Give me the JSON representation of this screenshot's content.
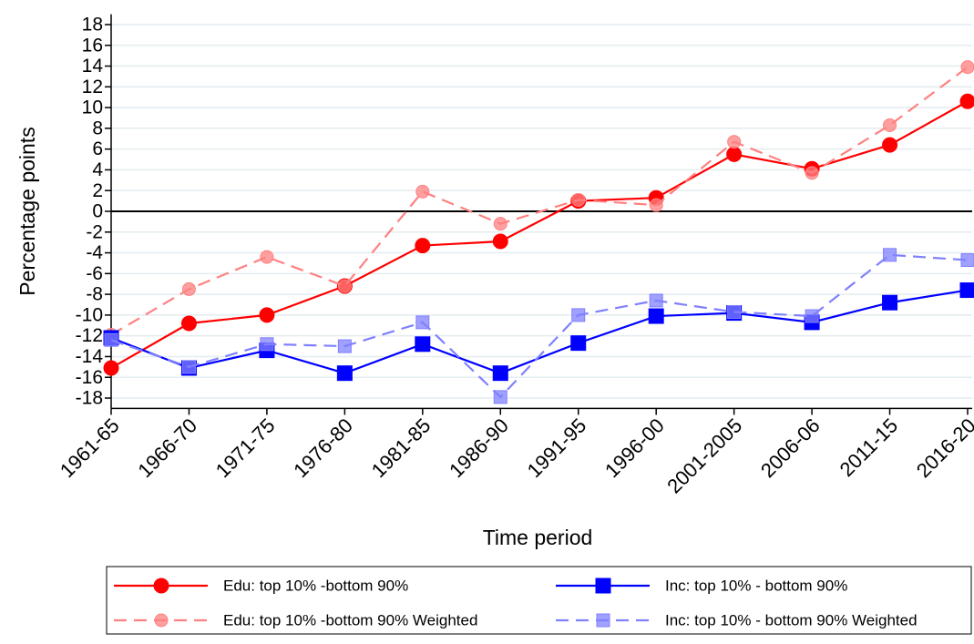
{
  "chart_data": {
    "type": "line",
    "x_label": "Time period",
    "y_label": "Percentage points",
    "categories": [
      "1961-65",
      "1966-70",
      "1971-75",
      "1976-80",
      "1981-85",
      "1986-90",
      "1991-95",
      "1996-00",
      "2001-2005",
      "2006-06",
      "2011-15",
      "2016-20"
    ],
    "series": [
      {
        "name": "Edu: top 10% -bottom 90%",
        "color": "#ff0000",
        "dash": false,
        "marker": "circle",
        "values": [
          -15.1,
          -10.8,
          -10.0,
          -7.2,
          -3.3,
          -2.9,
          1.0,
          1.3,
          5.5,
          4.1,
          6.4,
          10.6
        ]
      },
      {
        "name": "Edu: top 10% -bottom 90% Weighted",
        "color": "#ff8080",
        "dash": true,
        "marker": "circle",
        "values": [
          -11.9,
          -7.5,
          -4.4,
          -7.2,
          1.9,
          -1.2,
          1.1,
          0.6,
          6.7,
          3.7,
          8.3,
          13.9
        ]
      },
      {
        "name": "Inc: top 10% - bottom 90%",
        "color": "#0000ff",
        "dash": false,
        "marker": "square",
        "values": [
          -12.2,
          -15.1,
          -13.4,
          -15.6,
          -12.8,
          -15.6,
          -12.7,
          -10.1,
          -9.8,
          -10.7,
          -8.8,
          -7.6
        ]
      },
      {
        "name": "Inc: top 10% - bottom 90% Weighted",
        "color": "#8080ff",
        "dash": true,
        "marker": "square",
        "values": [
          -12.4,
          -15.0,
          -12.8,
          -13.0,
          -10.7,
          -17.9,
          -10.0,
          -8.6,
          -9.7,
          -10.1,
          -4.2,
          -4.7
        ]
      }
    ],
    "ylim": [
      -19,
      19
    ],
    "yticks": [
      -18,
      -16,
      -14,
      -12,
      -10,
      -8,
      -6,
      -4,
      -2,
      0,
      2,
      4,
      6,
      8,
      10,
      12,
      14,
      16,
      18
    ],
    "reference_line": 0,
    "grid": true
  }
}
